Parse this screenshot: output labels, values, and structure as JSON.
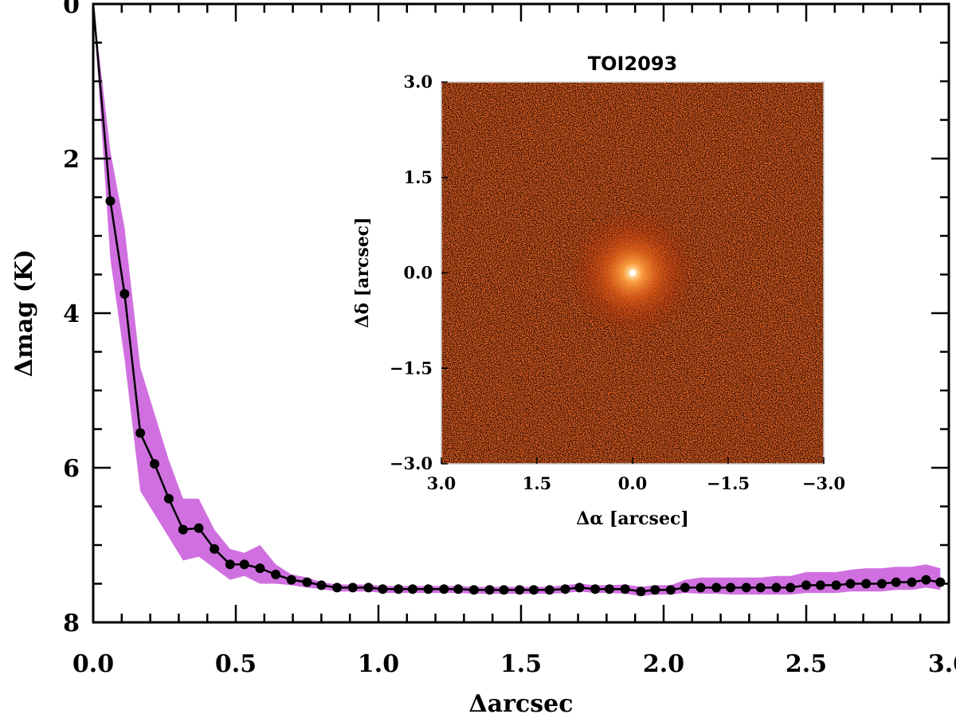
{
  "chart_data": [
    {
      "type": "line",
      "xlabel": "Δarcsec",
      "ylabel": "Δmag (K)",
      "xlim": [
        0.0,
        3.0
      ],
      "ylim": [
        0,
        8
      ],
      "y_inverted": true,
      "x_ticks": [
        "0.0",
        "0.5",
        "1.0",
        "1.5",
        "2.0",
        "2.5",
        "3.0"
      ],
      "y_ticks": [
        "0",
        "2",
        "4",
        "6",
        "8"
      ],
      "band_color": "#d070e0",
      "line_color": "#000000",
      "marker_color": "#000000",
      "series": [
        {
          "x": [
            0.0,
            0.06,
            0.11,
            0.165,
            0.215,
            0.265,
            0.315,
            0.37,
            0.425,
            0.48,
            0.53,
            0.585,
            0.64,
            0.695,
            0.75,
            0.8,
            0.855,
            0.91,
            0.965,
            1.015,
            1.07,
            1.12,
            1.175,
            1.23,
            1.28,
            1.335,
            1.39,
            1.44,
            1.495,
            1.545,
            1.6,
            1.655,
            1.705,
            1.76,
            1.81,
            1.865,
            1.92,
            1.97,
            2.025,
            2.075,
            2.13,
            2.185,
            2.235,
            2.29,
            2.34,
            2.395,
            2.445,
            2.5,
            2.55,
            2.605,
            2.655,
            2.71,
            2.765,
            2.815,
            2.87,
            2.92,
            2.97
          ],
          "values": [
            0.0,
            2.55,
            3.75,
            5.55,
            5.95,
            6.4,
            6.8,
            6.78,
            7.05,
            7.25,
            7.25,
            7.3,
            7.38,
            7.45,
            7.48,
            7.52,
            7.55,
            7.55,
            7.55,
            7.57,
            7.57,
            7.57,
            7.57,
            7.57,
            7.57,
            7.58,
            7.58,
            7.58,
            7.58,
            7.58,
            7.58,
            7.57,
            7.55,
            7.57,
            7.57,
            7.57,
            7.6,
            7.58,
            7.58,
            7.55,
            7.55,
            7.55,
            7.55,
            7.55,
            7.55,
            7.55,
            7.55,
            7.52,
            7.52,
            7.52,
            7.5,
            7.5,
            7.5,
            7.48,
            7.48,
            7.45,
            7.48
          ],
          "band_upper": [
            0.0,
            1.9,
            2.9,
            4.7,
            5.3,
            5.9,
            6.4,
            6.4,
            6.8,
            7.05,
            7.1,
            7.0,
            7.25,
            7.38,
            7.42,
            7.48,
            7.51,
            7.51,
            7.51,
            7.53,
            7.53,
            7.53,
            7.53,
            7.53,
            7.53,
            7.54,
            7.54,
            7.54,
            7.54,
            7.54,
            7.54,
            7.52,
            7.5,
            7.52,
            7.52,
            7.51,
            7.54,
            7.52,
            7.52,
            7.45,
            7.42,
            7.42,
            7.42,
            7.42,
            7.42,
            7.4,
            7.4,
            7.35,
            7.35,
            7.35,
            7.32,
            7.3,
            7.3,
            7.28,
            7.28,
            7.25,
            7.3
          ],
          "band_lower": [
            0.0,
            3.3,
            4.6,
            6.3,
            6.6,
            6.9,
            7.2,
            7.15,
            7.3,
            7.45,
            7.4,
            7.5,
            7.5,
            7.52,
            7.55,
            7.57,
            7.6,
            7.6,
            7.6,
            7.62,
            7.62,
            7.62,
            7.62,
            7.62,
            7.62,
            7.63,
            7.63,
            7.63,
            7.63,
            7.63,
            7.63,
            7.62,
            7.6,
            7.62,
            7.62,
            7.63,
            7.66,
            7.64,
            7.64,
            7.62,
            7.63,
            7.63,
            7.64,
            7.64,
            7.64,
            7.64,
            7.64,
            7.62,
            7.62,
            7.62,
            7.6,
            7.6,
            7.6,
            7.58,
            7.58,
            7.55,
            7.58
          ]
        }
      ]
    },
    {
      "type": "heatmap",
      "title": "TOI2093",
      "xlabel": "Δα [arcsec]",
      "ylabel": "Δδ [arcsec]",
      "xlim": [
        3.0,
        -3.0
      ],
      "ylim": [
        -3.0,
        3.0
      ],
      "x_ticks": [
        "3.0",
        "1.5",
        "0.0",
        "−1.5",
        "−3.0"
      ],
      "y_ticks": [
        "3.0",
        "1.5",
        "0.0",
        "−1.5",
        "−3.0"
      ],
      "colormap": [
        "#1a0500",
        "#8a1500",
        "#c83a08",
        "#f08a30",
        "#ffe0a0",
        "#ffffff"
      ],
      "source_position": [
        0.0,
        0.0
      ]
    }
  ]
}
